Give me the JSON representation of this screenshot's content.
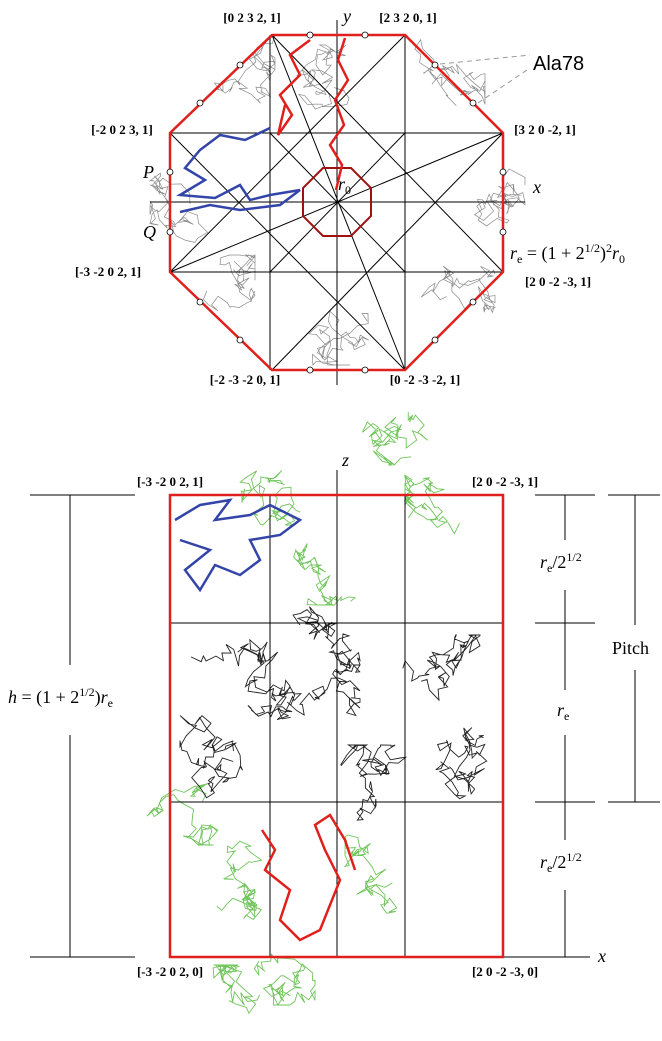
{
  "top_view": {
    "vertex_labels": [
      "[0 2 3 2, 1]",
      "[2 3 2 0, 1]",
      "[-2 0 2 3, 1]",
      "[3 2 0 -2, 1]",
      "[-3 -2 0 2, 1]",
      "[2 0 -2 -3, 1]",
      "[-2 -3 -2 0, 1]",
      "[0 -2 -3 -2, 1]"
    ],
    "axis_x": "x",
    "axis_y": "y",
    "residue": "Ala78",
    "point_p": "P",
    "point_q": "Q",
    "r0": {
      "symbol": "r",
      "sub": "0"
    },
    "re_formula": {
      "lhs": "r",
      "lhs_sub": "e",
      "mid": " = (1 + 2",
      "sup": "1/2",
      "close": ")",
      "power": "2",
      "rhs": "r",
      "rhs_sub": "0"
    }
  },
  "side_view": {
    "corner_labels": [
      "[-3 -2 0 2, 1]",
      "[2 0 -2 -3, 1]",
      "[-3 -2 0 2, 0]",
      "[2 0 -2 -3, 0]"
    ],
    "axis_z": "z",
    "axis_x": "x",
    "height_formula": {
      "lhs": "h",
      "mid": " = (1 + 2",
      "sup": "1/2",
      "close": ")",
      "r": "r",
      "sub": "e"
    },
    "segment_top": {
      "r": "r",
      "sub": "e",
      "slash": "/2",
      "sup": "1/2"
    },
    "segment_middle": {
      "r": "r",
      "sub": "e"
    },
    "segment_bottom": {
      "r": "r",
      "sub": "e",
      "slash": "/2",
      "sup": "1/2"
    },
    "pitch": "Pitch"
  }
}
